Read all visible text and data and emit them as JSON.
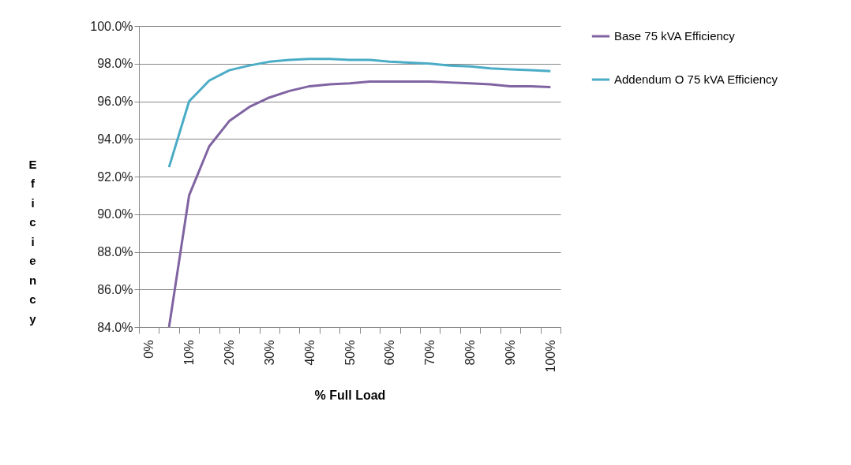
{
  "chart_data": {
    "type": "line",
    "xlabel": "% Full Load",
    "ylabel": "Eficiency",
    "categories": [
      "0%",
      null,
      "10%",
      null,
      "20%",
      null,
      "30%",
      null,
      "40%",
      null,
      "50%",
      null,
      "60%",
      null,
      "70%",
      null,
      "80%",
      null,
      "90%",
      null,
      "100%"
    ],
    "series": [
      {
        "name": "Base 75 kVA Efficiency",
        "color": "#8064a2",
        "values": [
          null,
          84.0,
          91.0,
          93.6,
          94.95,
          95.7,
          96.2,
          96.55,
          96.8,
          96.9,
          96.95,
          97.05,
          97.05,
          97.05,
          97.05,
          97.0,
          96.95,
          96.9,
          96.8,
          96.8,
          96.75
        ]
      },
      {
        "name": "Addendum O 75 kVA Efficiency",
        "color": "#4bacc6",
        "values": [
          null,
          92.5,
          96.0,
          97.1,
          97.65,
          97.9,
          98.1,
          98.2,
          98.25,
          98.25,
          98.2,
          98.2,
          98.1,
          98.05,
          98.0,
          97.9,
          97.85,
          97.75,
          97.7,
          97.65,
          97.6
        ]
      }
    ],
    "ylim": [
      84,
      100
    ],
    "yticks": [
      {
        "value": 84,
        "label": "84.0%"
      },
      {
        "value": 86,
        "label": "86.0%"
      },
      {
        "value": 88,
        "label": "88.0%"
      },
      {
        "value": 90,
        "label": "90.0%"
      },
      {
        "value": 92,
        "label": "92.0%"
      },
      {
        "value": 94,
        "label": "94.0%"
      },
      {
        "value": 96,
        "label": "96.0%"
      },
      {
        "value": 98,
        "label": "98.0%"
      },
      {
        "value": 100,
        "label": "100.0%"
      }
    ],
    "grid": "y",
    "legend": "right",
    "marker": "none",
    "line_style": "solid"
  }
}
